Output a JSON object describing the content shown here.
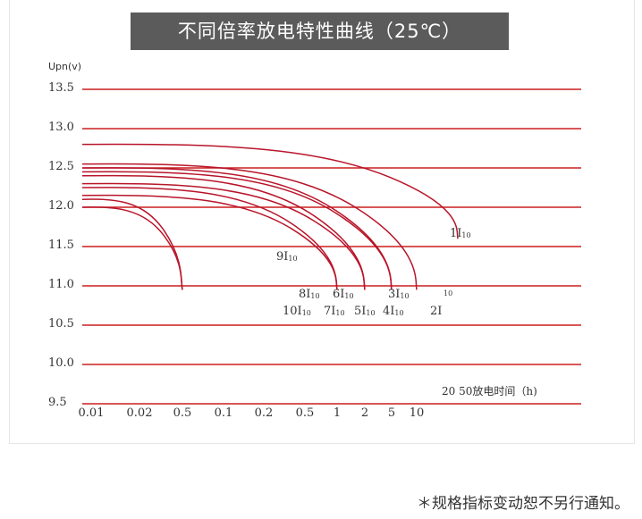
{
  "title": "不同倍率放电特性曲线（25℃）",
  "footnote": "＊规格指标变动恕不另行通知。",
  "chart_data": {
    "type": "line",
    "y_unit_label": "Upn(v)",
    "x_axis_caption": "20 50放电时间（h)",
    "y_ticks": [
      "13.5",
      "13.0",
      "12.5",
      "12.0",
      "11.5",
      "11.0",
      "10.5",
      "10.0",
      "9.5"
    ],
    "x_ticks": [
      "0.01",
      "0.02",
      "0.5",
      "0.1",
      "0.2",
      "0.5",
      "1",
      "2",
      "5",
      "10"
    ],
    "grid": true,
    "colors": {
      "grid": "#cc1f1f",
      "curve": "#b8152a",
      "text": "#333333"
    },
    "series": [
      {
        "label": "1I10",
        "start_v": 12.8,
        "end_v": 11.6,
        "end_x": "20"
      },
      {
        "label": "2I",
        "start_v": 12.55,
        "end_v": 10.95,
        "end_x": "10"
      },
      {
        "label": "3I10",
        "start_v": 12.5,
        "end_v": 10.95,
        "end_x": "5"
      },
      {
        "label": "4I10",
        "start_v": 12.45,
        "end_v": 10.95,
        "end_x": "5"
      },
      {
        "label": "5I10",
        "start_v": 12.4,
        "end_v": 10.95,
        "end_x": "2"
      },
      {
        "label": "6I10",
        "start_v": 12.3,
        "end_v": 10.95,
        "end_x": "2"
      },
      {
        "label": "7I10",
        "start_v": 12.25,
        "end_v": 10.95,
        "end_x": "1"
      },
      {
        "label": "8I10",
        "start_v": 12.15,
        "end_v": 10.95,
        "end_x": "1"
      },
      {
        "label": "9I10",
        "start_v": 12.1,
        "end_v": 10.95,
        "end_x": "0.5"
      },
      {
        "label": "10I10",
        "start_v": 12.0,
        "end_v": 10.95,
        "end_x": "0.5"
      }
    ],
    "annotations": [
      {
        "text": "1I",
        "sub": "10"
      },
      {
        "text": "9I",
        "sub": "10"
      },
      {
        "text": "8I",
        "sub": "10"
      },
      {
        "text": "6I",
        "sub": "10"
      },
      {
        "text": "3I",
        "sub": "10"
      },
      {
        "text": "",
        "sub": "10"
      },
      {
        "text": "10I",
        "sub": "10"
      },
      {
        "text": "7I",
        "sub": "10"
      },
      {
        "text": "5I",
        "sub": "10"
      },
      {
        "text": "4I",
        "sub": "10"
      },
      {
        "text": "2I",
        "sub": ""
      }
    ]
  }
}
